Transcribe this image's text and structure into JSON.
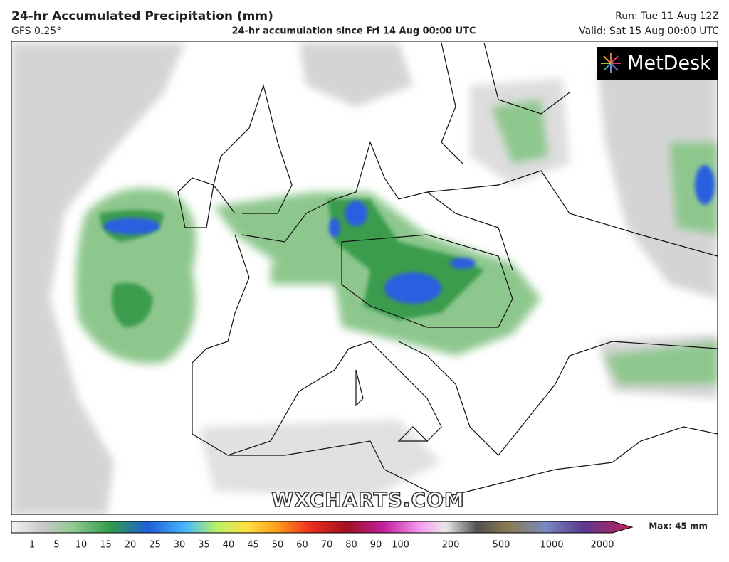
{
  "header": {
    "title": "24-hr Accumulated Precipitation (mm)",
    "model": "GFS 0.25°",
    "subtitle": "24-hr accumulation since Fri 14 Aug 00:00 UTC",
    "run": "Run: Tue 11 Aug 12Z",
    "valid": "Valid: Sat 15 Aug 00:00 UTC"
  },
  "map": {
    "logo": "MetDesk",
    "watermark": "WXCHARTS.COM"
  },
  "legend": {
    "ticks": [
      1,
      5,
      10,
      15,
      20,
      25,
      30,
      35,
      40,
      45,
      50,
      60,
      70,
      80,
      90,
      100,
      200,
      500,
      1000,
      2000
    ],
    "max_label": "Max: 45 mm"
  }
}
